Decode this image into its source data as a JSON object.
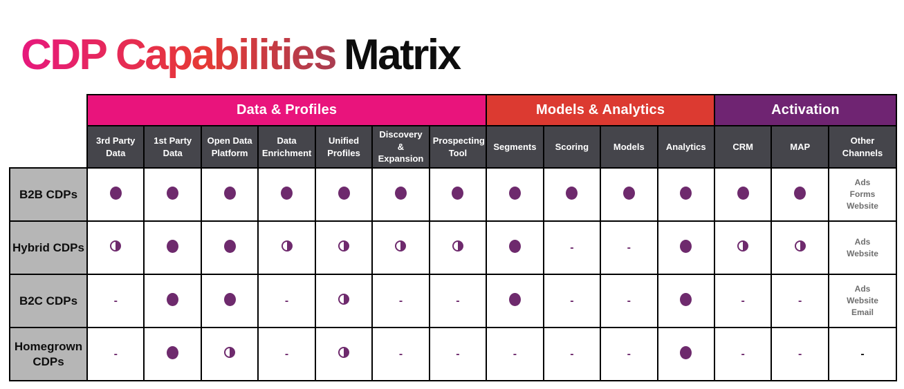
{
  "title": {
    "gradient_text": "CDP Capabilities",
    "plain_text": "Matrix",
    "gradient_colors": [
      "#E6187D",
      "#E63A35",
      "#A93C50"
    ],
    "plain_color": "#0d0d0d"
  },
  "symbols_legend": {
    "full": "filled-circle",
    "half": "half-filled-circle",
    "dash": "-",
    "dash_black": "-"
  },
  "chart_data": {
    "type": "table",
    "title": "CDP Capabilities Matrix",
    "column_groups": [
      {
        "label": "Data & Profiles",
        "color": "#E9147C",
        "span": 7
      },
      {
        "label": "Models & Analytics",
        "color": "#DC3A31",
        "span": 4
      },
      {
        "label": "Activation",
        "color": "#6F2472",
        "span": 3
      }
    ],
    "columns": [
      "3rd Party Data",
      "1st Party Data",
      "Open Data Platform",
      "Data Enrichment",
      "Unified Profiles",
      "Discovery & Expansion",
      "Prospecting Tool",
      "Segments",
      "Scoring",
      "Models",
      "Analytics",
      "CRM",
      "MAP",
      "Other Channels"
    ],
    "rows": [
      {
        "label": "B2B CDPs",
        "cells": [
          "full",
          "full",
          "full",
          "full",
          "full",
          "full",
          "full",
          "full",
          "full",
          "full",
          "full",
          "full",
          "full",
          [
            "Ads",
            "Forms",
            "Website"
          ]
        ]
      },
      {
        "label": "Hybrid CDPs",
        "cells": [
          "half",
          "full",
          "full",
          "half",
          "half",
          "half",
          "half",
          "full",
          "dash",
          "dash",
          "full",
          "half",
          "half",
          [
            "Ads",
            "Website"
          ]
        ]
      },
      {
        "label": "B2C CDPs",
        "cells": [
          "dash",
          "full",
          "full",
          "dash",
          "half",
          "dash",
          "dash",
          "full",
          "dash",
          "dash",
          "full",
          "dash",
          "dash",
          [
            "Ads",
            "Website",
            "Email"
          ]
        ]
      },
      {
        "label": "Homegrown CDPs",
        "cells": [
          "dash",
          "full",
          "half",
          "dash",
          "half",
          "dash",
          "dash",
          "dash",
          "dash",
          "dash",
          "full",
          "dash",
          "dash",
          "dash_black"
        ]
      }
    ],
    "colors": {
      "column_header_bg": "#45454B",
      "row_label_bg": "#B6B6B6",
      "circle_purple": "#6E2A6D",
      "dash_purple": "#6E2A6D",
      "dash_black": "#111111",
      "other_channels_text": "#6E6E6E",
      "border": "#000000"
    }
  }
}
